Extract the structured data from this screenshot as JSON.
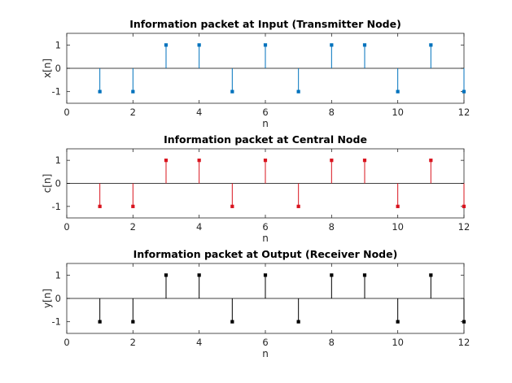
{
  "chart_data": [
    {
      "type": "stem",
      "title": "Information packet at Input (Transmitter Node)",
      "xlabel": "n",
      "ylabel": "x[n]",
      "xlim": [
        0,
        12
      ],
      "ylim": [
        -1.5,
        1.5
      ],
      "xticks": [
        0,
        2,
        4,
        6,
        8,
        10,
        12
      ],
      "yticks": [
        -1,
        0,
        1
      ],
      "color": "#0072BD",
      "x": [
        1,
        2,
        3,
        4,
        5,
        6,
        7,
        8,
        9,
        10,
        11,
        12
      ],
      "values": [
        -1,
        -1,
        1,
        1,
        -1,
        1,
        -1,
        1,
        1,
        -1,
        1,
        -1
      ]
    },
    {
      "type": "stem",
      "title": "Information packet at Central Node",
      "xlabel": "n",
      "ylabel": "c[n]",
      "xlim": [
        0,
        12
      ],
      "ylim": [
        -1.5,
        1.5
      ],
      "xticks": [
        0,
        2,
        4,
        6,
        8,
        10,
        12
      ],
      "yticks": [
        -1,
        0,
        1
      ],
      "color": "#D9141E",
      "x": [
        1,
        2,
        3,
        4,
        5,
        6,
        7,
        8,
        9,
        10,
        11,
        12
      ],
      "values": [
        -1,
        -1,
        1,
        1,
        -1,
        1,
        -1,
        1,
        1,
        -1,
        1,
        -1
      ]
    },
    {
      "type": "stem",
      "title": "Information packet at Output (Receiver Node)",
      "xlabel": "n",
      "ylabel": "y[n]",
      "xlim": [
        0,
        12
      ],
      "ylim": [
        -1.5,
        1.5
      ],
      "xticks": [
        0,
        2,
        4,
        6,
        8,
        10,
        12
      ],
      "yticks": [
        -1,
        0,
        1
      ],
      "color": "#000000",
      "x": [
        1,
        2,
        3,
        4,
        5,
        6,
        7,
        8,
        9,
        10,
        11,
        12
      ],
      "values": [
        -1,
        -1,
        1,
        1,
        -1,
        1,
        -1,
        1,
        1,
        -1,
        1,
        -1
      ]
    }
  ]
}
